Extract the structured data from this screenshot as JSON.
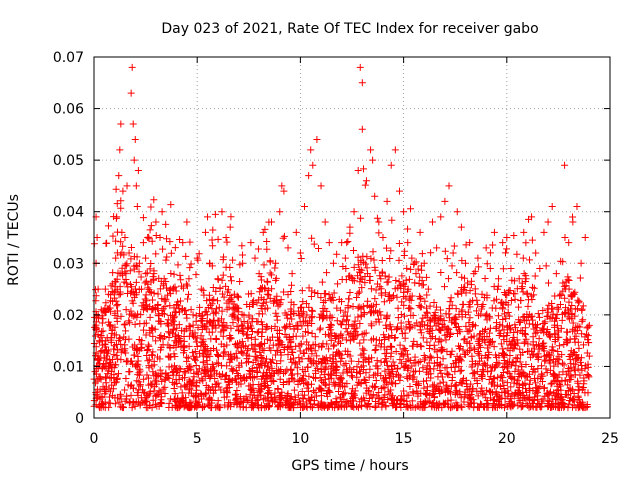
{
  "chart_data": {
    "type": "scatter",
    "title": "Day 023 of 2021, Rate Of TEC Index for receiver gabo",
    "xlabel": "GPS time / hours",
    "ylabel": "ROTI / TECUs",
    "xlim": [
      0,
      25
    ],
    "ylim": [
      0,
      0.07
    ],
    "x_ticks": [
      "0",
      "5",
      "10",
      "15",
      "20",
      "25"
    ],
    "y_ticks": [
      "0",
      "0.01",
      "0.02",
      "0.03",
      "0.04",
      "0.05",
      "0.06",
      "0.07"
    ],
    "grid": true,
    "marker": "plus",
    "color": "#ff0000",
    "series": [
      {
        "points": [
          [
            0.05,
            0.009
          ],
          [
            0.1,
            0.018
          ],
          [
            0.1,
            0.03
          ],
          [
            0.1,
            0.039
          ],
          [
            0.15,
            0.035
          ],
          [
            0.2,
            0.025
          ],
          [
            0.2,
            0.012
          ],
          [
            0.3,
            0.008
          ],
          [
            0.35,
            0.021
          ],
          [
            0.4,
            0.015
          ],
          [
            0.5,
            0.01
          ],
          [
            0.55,
            0.025
          ],
          [
            0.6,
            0.006
          ],
          [
            0.7,
            0.013
          ],
          [
            0.7,
            0.024
          ],
          [
            0.8,
            0.018
          ],
          [
            0.85,
            0.009
          ],
          [
            0.9,
            0.026
          ],
          [
            1.0,
            0.014
          ],
          [
            1.05,
            0.031
          ],
          [
            1.1,
            0.039
          ],
          [
            1.15,
            0.022
          ],
          [
            1.2,
            0.047
          ],
          [
            1.25,
            0.052
          ],
          [
            1.3,
            0.057
          ],
          [
            1.35,
            0.036
          ],
          [
            1.4,
            0.044
          ],
          [
            1.5,
            0.035
          ],
          [
            1.55,
            0.028
          ],
          [
            1.6,
            0.045
          ],
          [
            1.7,
            0.032
          ],
          [
            1.8,
            0.063
          ],
          [
            1.85,
            0.068
          ],
          [
            1.9,
            0.057
          ],
          [
            1.95,
            0.05
          ],
          [
            2.0,
            0.054
          ],
          [
            2.05,
            0.045
          ],
          [
            2.1,
            0.041
          ],
          [
            2.15,
            0.048
          ],
          [
            2.2,
            0.03
          ],
          [
            2.3,
            0.025
          ],
          [
            2.4,
            0.021
          ],
          [
            2.5,
            0.031
          ],
          [
            2.6,
            0.035
          ],
          [
            2.7,
            0.017
          ],
          [
            2.8,
            0.021
          ],
          [
            2.9,
            0.028
          ],
          [
            3.0,
            0.038
          ],
          [
            3.1,
            0.022
          ],
          [
            3.2,
            0.035
          ],
          [
            3.3,
            0.04
          ],
          [
            3.4,
            0.027
          ],
          [
            3.6,
            0.012
          ],
          [
            3.7,
            0.025
          ],
          [
            3.8,
            0.019
          ],
          [
            4.0,
            0.022
          ],
          [
            4.2,
            0.015
          ],
          [
            4.3,
            0.034
          ],
          [
            4.5,
            0.038
          ],
          [
            4.6,
            0.027
          ],
          [
            4.8,
            0.02
          ],
          [
            5.0,
            0.031
          ],
          [
            5.2,
            0.025
          ],
          [
            5.4,
            0.036
          ],
          [
            5.5,
            0.039
          ],
          [
            5.6,
            0.03
          ],
          [
            5.8,
            0.023
          ],
          [
            6.0,
            0.027
          ],
          [
            6.2,
            0.04
          ],
          [
            6.4,
            0.035
          ],
          [
            6.6,
            0.037
          ],
          [
            6.8,
            0.024
          ],
          [
            7.0,
            0.019
          ],
          [
            7.2,
            0.03
          ],
          [
            7.4,
            0.022
          ],
          [
            7.6,
            0.034
          ],
          [
            7.8,
            0.031
          ],
          [
            8.0,
            0.028
          ],
          [
            8.2,
            0.036
          ],
          [
            8.4,
            0.024
          ],
          [
            8.6,
            0.038
          ],
          [
            8.8,
            0.03
          ],
          [
            9.0,
            0.04
          ],
          [
            9.1,
            0.045
          ],
          [
            9.2,
            0.044
          ],
          [
            9.4,
            0.033
          ],
          [
            9.6,
            0.028
          ],
          [
            9.8,
            0.036
          ],
          [
            10.0,
            0.032
          ],
          [
            10.2,
            0.041
          ],
          [
            10.4,
            0.047
          ],
          [
            10.5,
            0.052
          ],
          [
            10.6,
            0.049
          ],
          [
            10.8,
            0.054
          ],
          [
            11.0,
            0.045
          ],
          [
            11.2,
            0.038
          ],
          [
            11.4,
            0.034
          ],
          [
            11.6,
            0.03
          ],
          [
            11.8,
            0.026
          ],
          [
            12.0,
            0.034
          ],
          [
            12.2,
            0.029
          ],
          [
            12.4,
            0.037
          ],
          [
            12.6,
            0.04
          ],
          [
            12.8,
            0.048
          ],
          [
            12.9,
            0.068
          ],
          [
            13.0,
            0.065
          ],
          [
            13.0,
            0.056
          ],
          [
            13.2,
            0.046
          ],
          [
            13.4,
            0.052
          ],
          [
            13.5,
            0.05
          ],
          [
            13.6,
            0.043
          ],
          [
            13.8,
            0.038
          ],
          [
            14.0,
            0.035
          ],
          [
            14.2,
            0.042
          ],
          [
            14.4,
            0.049
          ],
          [
            14.6,
            0.052
          ],
          [
            14.8,
            0.044
          ],
          [
            15.0,
            0.04
          ],
          [
            15.2,
            0.034
          ],
          [
            15.4,
            0.031
          ],
          [
            15.6,
            0.028
          ],
          [
            15.8,
            0.036
          ],
          [
            16.0,
            0.03
          ],
          [
            16.2,
            0.025
          ],
          [
            16.4,
            0.038
          ],
          [
            16.6,
            0.033
          ],
          [
            16.8,
            0.039
          ],
          [
            17.0,
            0.042
          ],
          [
            17.2,
            0.045
          ],
          [
            17.4,
            0.032
          ],
          [
            17.6,
            0.04
          ],
          [
            17.8,
            0.037
          ],
          [
            18.0,
            0.03
          ],
          [
            18.2,
            0.034
          ],
          [
            18.4,
            0.028
          ],
          [
            18.6,
            0.031
          ],
          [
            18.8,
            0.024
          ],
          [
            19.0,
            0.033
          ],
          [
            19.2,
            0.029
          ],
          [
            19.4,
            0.036
          ],
          [
            19.6,
            0.027
          ],
          [
            19.8,
            0.034
          ],
          [
            20.0,
            0.035
          ],
          [
            20.2,
            0.029
          ],
          [
            20.4,
            0.023
          ],
          [
            20.6,
            0.027
          ],
          [
            20.8,
            0.031
          ],
          [
            21.0,
            0.024
          ],
          [
            21.2,
            0.039
          ],
          [
            21.4,
            0.032
          ],
          [
            21.6,
            0.029
          ],
          [
            21.8,
            0.036
          ],
          [
            22.0,
            0.038
          ],
          [
            22.2,
            0.041
          ],
          [
            22.4,
            0.028
          ],
          [
            22.6,
            0.022
          ],
          [
            22.8,
            0.049
          ],
          [
            23.0,
            0.034
          ],
          [
            23.2,
            0.038
          ],
          [
            23.4,
            0.041
          ],
          [
            23.6,
            0.03
          ],
          [
            23.8,
            0.035
          ],
          [
            24.0,
            0.012
          ]
        ]
      }
    ],
    "dense_band": {
      "x_range": [
        0,
        24
      ],
      "y_floor": 0.002,
      "y_baseline": 0.009,
      "samples": 3500
    }
  }
}
